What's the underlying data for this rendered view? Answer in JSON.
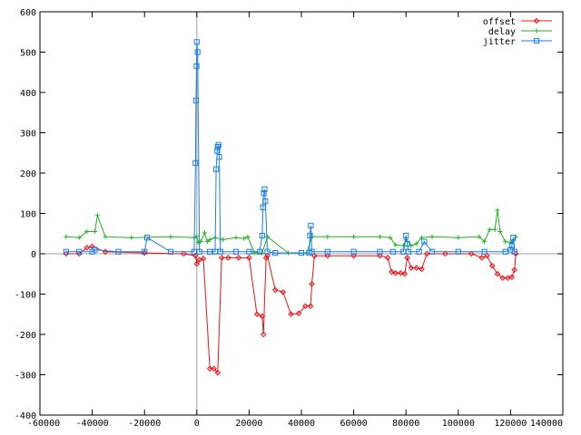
{
  "chart_data": {
    "type": "line",
    "title": "",
    "xlabel": "",
    "ylabel": "",
    "xlim": [
      -60000,
      140000
    ],
    "ylim": [
      -400,
      600
    ],
    "x_ticks": [
      "-60000",
      "-40000",
      "-20000",
      "0",
      "20000",
      "40000",
      "60000",
      "80000",
      "100000",
      "120000",
      "140000"
    ],
    "y_ticks": [
      "600",
      "500",
      "400",
      "300",
      "200",
      "100",
      "0",
      "-100",
      "-200",
      "-300",
      "-400"
    ],
    "x_tick_values": [
      -60000,
      -40000,
      -20000,
      0,
      20000,
      40000,
      60000,
      80000,
      100000,
      120000,
      140000
    ],
    "y_tick_values": [
      600,
      500,
      400,
      300,
      200,
      100,
      0,
      -100,
      -200,
      -300,
      -400
    ],
    "legend_position": "top-right",
    "zero_axes": true,
    "series": [
      {
        "name": "offset",
        "color": "#e8141a",
        "marker": "diamond",
        "x": [
          -50000,
          -45000,
          -42000,
          -40000,
          -35000,
          -20000,
          -5000,
          -500,
          0,
          1000,
          2500,
          5000,
          6500,
          8000,
          9500,
          12000,
          16000,
          20000,
          23000,
          25000,
          25500,
          26500,
          27000,
          30000,
          33000,
          36000,
          39000,
          41500,
          43500,
          44000,
          45000,
          50000,
          60000,
          70000,
          73000,
          74500,
          76000,
          78000,
          79500,
          80500,
          82000,
          84000,
          86000,
          88000,
          95000,
          105000,
          109000,
          111000,
          113000,
          115000,
          117000,
          119000,
          120500,
          121500,
          122000
        ],
        "y": [
          0,
          0,
          15,
          18,
          5,
          2,
          0,
          -5,
          -25,
          -15,
          -12,
          -285,
          -285,
          -295,
          -10,
          -10,
          -10,
          -10,
          -150,
          -155,
          -200,
          -10,
          -5,
          -90,
          -95,
          -150,
          -148,
          -130,
          -130,
          -75,
          -5,
          -5,
          -5,
          -5,
          -10,
          -45,
          -48,
          -48,
          -50,
          -10,
          -35,
          -35,
          -38,
          0,
          0,
          0,
          -10,
          -5,
          -30,
          -50,
          -60,
          -60,
          -58,
          -40,
          0
        ]
      },
      {
        "name": "delay",
        "color": "#22b322",
        "marker": "plus",
        "x": [
          -50000,
          -45000,
          -42000,
          -39000,
          -38000,
          -35000,
          -25000,
          -10000,
          -1000,
          0,
          500,
          1500,
          3000,
          4000,
          5000,
          7000,
          10000,
          15000,
          18000,
          19500,
          22000,
          25000,
          27000,
          35000,
          42000,
          44000,
          50000,
          60000,
          70000,
          74000,
          76000,
          79000,
          80000,
          82000,
          84000,
          86000,
          90000,
          100000,
          108000,
          110000,
          112000,
          114000,
          115000,
          116000,
          118000,
          120000,
          121000,
          122000
        ],
        "y": [
          42,
          40,
          55,
          55,
          95,
          42,
          40,
          42,
          40,
          43,
          28,
          30,
          52,
          30,
          35,
          40,
          35,
          40,
          38,
          42,
          2,
          2,
          42,
          2,
          2,
          42,
          42,
          42,
          42,
          40,
          22,
          20,
          35,
          20,
          25,
          40,
          42,
          40,
          42,
          30,
          60,
          60,
          108,
          55,
          30,
          28,
          32,
          42
        ]
      },
      {
        "name": "jitter",
        "color": "#1a7ee6",
        "marker": "square",
        "x": [
          -50000,
          -45000,
          -40000,
          -39000,
          -30000,
          -20000,
          -19000,
          -10000,
          -1000,
          -500,
          -300,
          -100,
          0,
          300,
          1000,
          5000,
          7000,
          7400,
          7800,
          8000,
          8300,
          8600,
          9000,
          15000,
          20000,
          24000,
          25000,
          25300,
          25600,
          25900,
          26200,
          27000,
          30000,
          40000,
          43000,
          43300,
          43600,
          44000,
          50000,
          60000,
          70000,
          75000,
          79000,
          80000,
          80500,
          81000,
          85000,
          87000,
          90000,
          100000,
          110000,
          118000,
          120000,
          120500,
          121000,
          121500
        ],
        "y": [
          5,
          5,
          5,
          10,
          5,
          5,
          40,
          5,
          5,
          225,
          380,
          465,
          525,
          500,
          5,
          5,
          5,
          210,
          255,
          265,
          270,
          240,
          5,
          5,
          5,
          5,
          45,
          115,
          150,
          160,
          130,
          5,
          2,
          2,
          2,
          45,
          70,
          5,
          5,
          5,
          5,
          5,
          5,
          45,
          25,
          5,
          5,
          30,
          5,
          5,
          5,
          5,
          10,
          20,
          40,
          5
        ]
      }
    ]
  }
}
